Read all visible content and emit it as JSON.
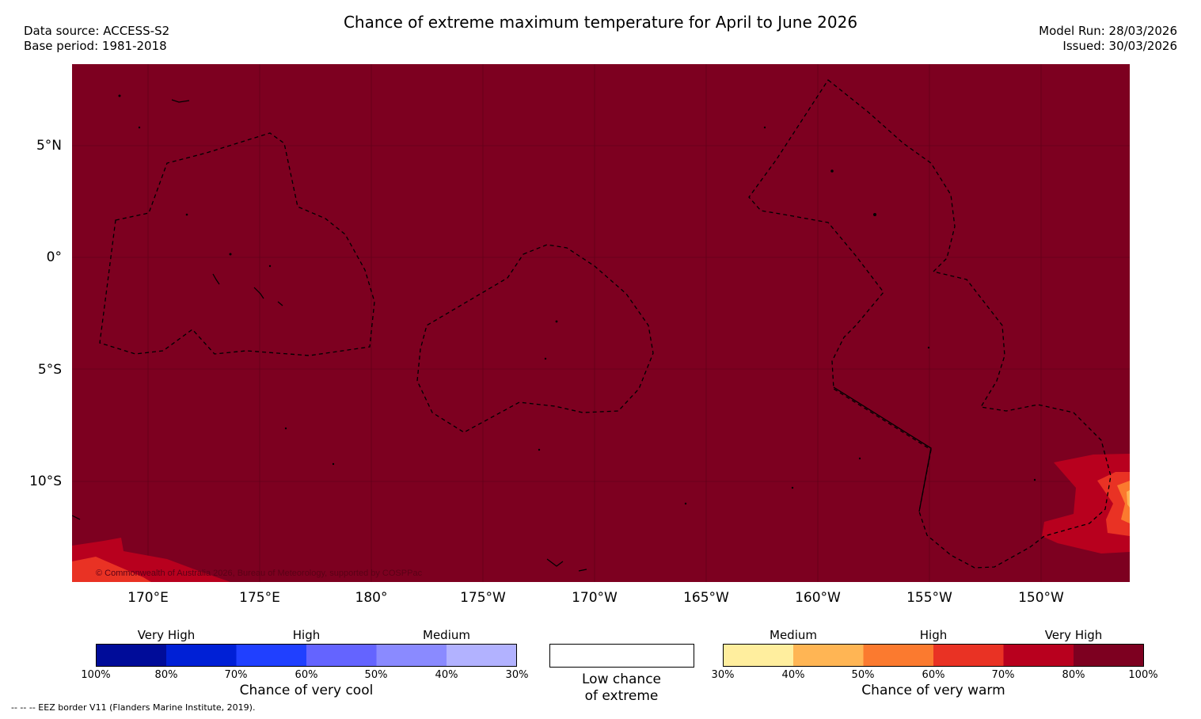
{
  "title": "Chance of extreme maximum temperature for April to June 2026",
  "meta_left": {
    "source": "Data source: ACCESS-S2",
    "base": "Base period: 1981-2018"
  },
  "meta_right": {
    "model_run": "Model Run: 28/03/2026",
    "issued": "Issued: 30/03/2026"
  },
  "map": {
    "copyright": "© Commonwealth of Australia 2026, Bureau of Meteorology, supported by COSPPac",
    "lat_labels": [
      "5°N",
      "0°",
      "5°S",
      "10°S"
    ],
    "lon_labels": [
      "170°E",
      "175°E",
      "180°",
      "175°W",
      "170°W",
      "165°W",
      "160°W",
      "155°W",
      "150°W"
    ],
    "colors": {
      "background": "#7d0020",
      "very_high_2": "#b8001e",
      "high_2": "#e93224",
      "high_1": "#fb7a2f",
      "medium_2": "#ffb554"
    }
  },
  "cool_legend": {
    "categories": [
      "Very High",
      "High",
      "Medium"
    ],
    "ticks": [
      "100%",
      "80%",
      "70%",
      "60%",
      "50%",
      "40%",
      "30%"
    ],
    "caption": "Chance of very cool",
    "colors": [
      "#000c99",
      "#0020d6",
      "#2040ff",
      "#6464ff",
      "#8a8aff",
      "#b2b2ff"
    ]
  },
  "neutral_legend": {
    "line1": "Low chance",
    "line2": "of extreme"
  },
  "warm_legend": {
    "categories": [
      "Medium",
      "High",
      "Very High"
    ],
    "ticks": [
      "30%",
      "40%",
      "50%",
      "60%",
      "70%",
      "80%",
      "100%"
    ],
    "caption": "Chance of very warm",
    "colors": [
      "#ffee9e",
      "#ffb554",
      "#fb7a2f",
      "#e93224",
      "#b8001e",
      "#7d0020"
    ]
  },
  "footnote": "--  --  -- EEZ border V11 (Flanders Marine Institute, 2019)."
}
